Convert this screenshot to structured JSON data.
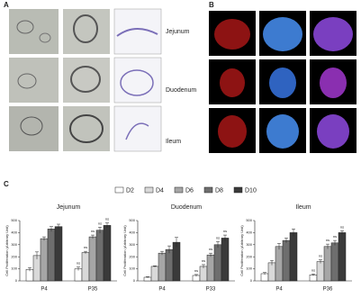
{
  "figure": {
    "panels": [
      "A",
      "B",
      "C"
    ],
    "row_labels": [
      "Jejunum",
      "Duodenum",
      "Ileum"
    ]
  },
  "legend": {
    "names": [
      "D2",
      "D4",
      "D6",
      "D8",
      "D10"
    ],
    "colors": [
      "#ffffff",
      "#d9d9d9",
      "#a6a6a6",
      "#6e6e6e",
      "#3a3a3a"
    ]
  },
  "chart_data": [
    {
      "type": "bar",
      "title": "Jejunum",
      "y_label": "Cell Proliferation (Arbitrary Unit)",
      "categories": [
        "P4",
        "P35"
      ],
      "ylim": [
        0,
        500
      ],
      "yticks": [
        0,
        100,
        200,
        300,
        400,
        500
      ],
      "series": [
        {
          "values": [
            95,
            100
          ],
          "errors": [
            15,
            15
          ],
          "annotations": [
            null,
            "ns"
          ]
        },
        {
          "values": [
            210,
            235
          ],
          "errors": [
            30,
            10
          ],
          "annotations": [
            null,
            "ns"
          ]
        },
        {
          "values": [
            350,
            365
          ],
          "errors": [
            15,
            15
          ],
          "annotations": [
            null,
            "ns"
          ]
        },
        {
          "values": [
            430,
            420
          ],
          "errors": [
            20,
            25
          ],
          "annotations": [
            null,
            "ns"
          ]
        },
        {
          "values": [
            450,
            460
          ],
          "errors": [
            20,
            20
          ],
          "annotations": [
            null,
            "ns"
          ]
        }
      ]
    },
    {
      "type": "bar",
      "title": "Duodenum",
      "y_label": "Cell Proliferation (Arbitrary Unit)",
      "categories": [
        "P4",
        "P33"
      ],
      "ylim": [
        0,
        500
      ],
      "yticks": [
        0,
        100,
        200,
        300,
        400,
        500
      ],
      "series": [
        {
          "values": [
            30,
            45
          ],
          "errors": [
            5,
            8
          ],
          "annotations": [
            null,
            "ns"
          ]
        },
        {
          "values": [
            120,
            120
          ],
          "errors": [
            5,
            15
          ],
          "annotations": [
            null,
            "ns"
          ]
        },
        {
          "values": [
            230,
            215
          ],
          "errors": [
            15,
            15
          ],
          "annotations": [
            null,
            "ns"
          ]
        },
        {
          "values": [
            260,
            300
          ],
          "errors": [
            30,
            25
          ],
          "annotations": [
            null,
            "ns"
          ]
        },
        {
          "values": [
            320,
            355
          ],
          "errors": [
            40,
            25
          ],
          "annotations": [
            null,
            "ns"
          ]
        }
      ]
    },
    {
      "type": "bar",
      "title": "Ileum",
      "y_label": "Cell Proliferation (Arbitrary Unit)",
      "categories": [
        "P4",
        "P36"
      ],
      "ylim": [
        0,
        500
      ],
      "yticks": [
        0,
        100,
        200,
        300,
        400,
        500
      ],
      "series": [
        {
          "values": [
            60,
            50
          ],
          "errors": [
            10,
            8
          ],
          "annotations": [
            null,
            "ns"
          ]
        },
        {
          "values": [
            150,
            160
          ],
          "errors": [
            20,
            15
          ],
          "annotations": [
            null,
            "ns"
          ]
        },
        {
          "values": [
            285,
            285
          ],
          "errors": [
            25,
            20
          ],
          "annotations": [
            null,
            "ns"
          ]
        },
        {
          "values": [
            335,
            315
          ],
          "errors": [
            20,
            20
          ],
          "annotations": [
            null,
            "ns"
          ]
        },
        {
          "values": [
            400,
            400
          ],
          "errors": [
            30,
            15
          ],
          "annotations": [
            null,
            "ns"
          ]
        }
      ]
    }
  ]
}
